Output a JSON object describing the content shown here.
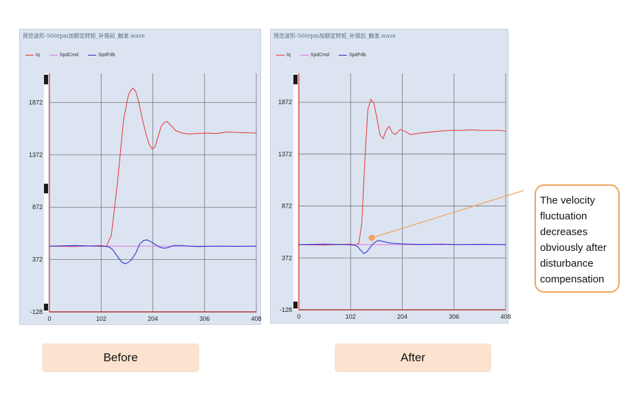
{
  "colors": {
    "iq": "#e8302f",
    "spdcmd": "#e070e8",
    "spdfdb": "#2020c8",
    "accent": "#f2a15a",
    "label_bg": "#fbe3cf"
  },
  "chart_data": [
    {
      "type": "line",
      "panel_title": "预览波形-500rpm加额定转矩_补偿前_触发.wave",
      "legend": [
        "Iq",
        "SpdCmd",
        "SpdFdb"
      ],
      "xlim": [
        0,
        408
      ],
      "ylim": [
        -128,
        2150
      ],
      "x_ticks": [
        0,
        102,
        204,
        306,
        408
      ],
      "y_ticks": [
        1872,
        1372,
        872,
        372,
        -128
      ],
      "series": [
        {
          "name": "Iq",
          "color": "#e8302f",
          "x": [
            0,
            50,
            100,
            112,
            122,
            134,
            146,
            156,
            164,
            170,
            176,
            183,
            190,
            196,
            202,
            208,
            214,
            220,
            226,
            232,
            238,
            244,
            250,
            262,
            276,
            290,
            310,
            330,
            350,
            370,
            408
          ],
          "y": [
            500,
            495,
            505,
            500,
            600,
            1100,
            1700,
            1950,
            2010,
            1980,
            1880,
            1720,
            1580,
            1480,
            1430,
            1445,
            1540,
            1640,
            1680,
            1690,
            1660,
            1630,
            1600,
            1580,
            1570,
            1575,
            1580,
            1575,
            1590,
            1585,
            1580
          ]
        },
        {
          "name": "SpdCmd",
          "color": "#e070e8",
          "x": [
            0,
            408
          ],
          "y": [
            500,
            500
          ]
        },
        {
          "name": "SpdFdb",
          "color": "#2020c8",
          "x": [
            0,
            50,
            100,
            112,
            118,
            124,
            130,
            136,
            142,
            150,
            160,
            170,
            178,
            186,
            192,
            198,
            204,
            212,
            220,
            228,
            236,
            244,
            260,
            290,
            330,
            370,
            408
          ],
          "y": [
            500,
            505,
            500,
            498,
            490,
            470,
            430,
            390,
            350,
            330,
            360,
            430,
            520,
            555,
            560,
            548,
            530,
            505,
            485,
            480,
            490,
            505,
            505,
            495,
            500,
            498,
            500
          ]
        }
      ]
    },
    {
      "type": "line",
      "panel_title": "预览波形-500rpm加额定转矩_补偿后_触发.wave",
      "legend": [
        "Iq",
        "SpdCmd",
        "SpdFdb"
      ],
      "xlim": [
        0,
        408
      ],
      "ylim": [
        -128,
        2150
      ],
      "x_ticks": [
        0,
        102,
        204,
        306,
        408
      ],
      "y_ticks": [
        1872,
        1372,
        872,
        372,
        -128
      ],
      "series": [
        {
          "name": "Iq",
          "color": "#e8302f",
          "x": [
            0,
            50,
            100,
            112,
            118,
            124,
            130,
            136,
            142,
            148,
            154,
            160,
            166,
            172,
            178,
            184,
            190,
            200,
            210,
            220,
            240,
            260,
            280,
            300,
            320,
            340,
            360,
            380,
            400,
            408
          ],
          "y": [
            500,
            495,
            505,
            500,
            510,
            700,
            1300,
            1800,
            1900,
            1860,
            1720,
            1560,
            1520,
            1600,
            1640,
            1580,
            1560,
            1610,
            1590,
            1560,
            1575,
            1585,
            1595,
            1600,
            1600,
            1605,
            1600,
            1600,
            1600,
            1590
          ]
        },
        {
          "name": "SpdCmd",
          "color": "#e070e8",
          "x": [
            0,
            408
          ],
          "y": [
            500,
            500
          ]
        },
        {
          "name": "SpdFdb",
          "color": "#2020c8",
          "x": [
            0,
            50,
            100,
            110,
            116,
            122,
            128,
            134,
            140,
            148,
            156,
            166,
            180,
            200,
            240,
            280,
            320,
            360,
            408
          ],
          "y": [
            500,
            505,
            500,
            495,
            480,
            445,
            415,
            430,
            470,
            515,
            540,
            530,
            515,
            508,
            502,
            505,
            500,
            503,
            500
          ]
        }
      ]
    }
  ],
  "labels": {
    "before": "Before",
    "after": "After"
  },
  "callout": {
    "lines": [
      "The velocity",
      "fluctuation",
      "decreases",
      "obviously after",
      "disturbance",
      "compensation"
    ]
  }
}
